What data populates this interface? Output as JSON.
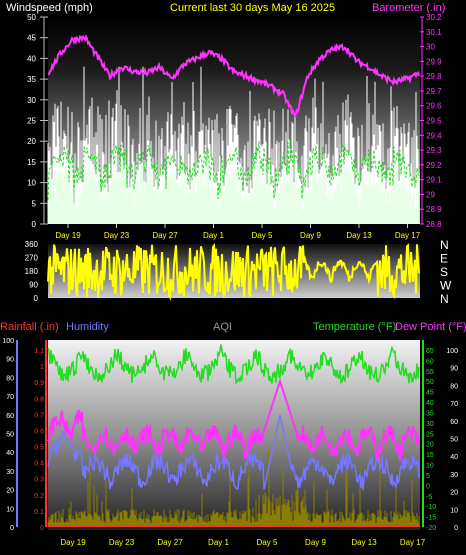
{
  "colors": {
    "background": "#000000",
    "wind_avg": "#e8ffe8",
    "wind_gust": "#ffffff",
    "wind_dashed": "#22dd22",
    "barometer": "#ff33ff",
    "direction": "#ffff00",
    "rainfall": "#ff3333",
    "humidity": "#7777ff",
    "temperature": "#22dd22",
    "dew_point": "#ff33ff",
    "aqi": "#9a9a9a",
    "olive_series": "#8b7d00",
    "x_labels": "#ffff00",
    "axis_labels": "#ffffff"
  },
  "chart_data": [
    {
      "type": "area",
      "title": "Current last 30 days May 16 2025",
      "y_left_label": "Windspeed (mph)",
      "y_right_label": "Barometer (.in)",
      "y_left_ticks": [
        "0",
        "5",
        "10",
        "15",
        "20",
        "25",
        "30",
        "35",
        "40",
        "45",
        "50"
      ],
      "y_left_range": [
        0,
        50
      ],
      "y_right_ticks": [
        "28.8",
        "28.9",
        "29",
        "29.1",
        "29.2",
        "29.3",
        "29.4",
        "29.5",
        "29.6",
        "29.7",
        "29.8",
        "29.9",
        "30",
        "30.1",
        "30.2"
      ],
      "y_right_range": [
        28.8,
        30.2
      ],
      "x_labels": [
        "Day 19",
        "Day 23",
        "Day 27",
        "Day 1",
        "Day 5",
        "Day 9",
        "Day 13",
        "Day 17"
      ],
      "barometer_daily": [
        29.82,
        29.95,
        30.05,
        30.06,
        29.93,
        29.8,
        29.86,
        29.83,
        29.82,
        29.86,
        29.78,
        29.88,
        29.92,
        29.96,
        29.92,
        29.83,
        29.8,
        29.77,
        29.73,
        29.68,
        29.52,
        29.8,
        29.92,
        29.98,
        30.0,
        29.9,
        29.86,
        29.8,
        29.76,
        29.78,
        29.82
      ]
    },
    {
      "type": "line",
      "title": "",
      "y_left_ticks": [
        "0",
        "90",
        "180",
        "270",
        "360"
      ],
      "y_left_range": [
        0,
        360
      ],
      "y_right_ticks": [
        "N",
        "W",
        "S",
        "E",
        "N"
      ]
    },
    {
      "type": "line",
      "legend": [
        "Rainfall (.in)",
        "Humidity",
        "AQI",
        "Temperature (°F)",
        "Dew Point (°F)"
      ],
      "y_axis_humidity_ticks": [
        "0",
        "10",
        "20",
        "30",
        "40",
        "50",
        "60",
        "70",
        "80",
        "90",
        "100"
      ],
      "y_axis_rain_ticks": [
        "0",
        "0.1",
        "0.2",
        "0.3",
        "0.4",
        "0.5",
        "0.6",
        "0.7",
        "0.8",
        "0.9",
        "1",
        "1.1"
      ],
      "y_axis_temp_ticks": [
        "-20",
        "-15",
        "-10",
        "-5",
        "0",
        "5",
        "10",
        "15",
        "20",
        "25",
        "30",
        "35",
        "40",
        "45",
        "50",
        "55",
        "60",
        "65"
      ],
      "y_axis_right_ticks": [
        "0",
        "10",
        "20",
        "30",
        "40",
        "50",
        "60",
        "70",
        "80",
        "90",
        "100"
      ],
      "x_labels": [
        "Day 19",
        "Day 23",
        "Day 27",
        "Day 1",
        "Day 5",
        "Day 9",
        "Day 13",
        "Day 17"
      ]
    }
  ]
}
